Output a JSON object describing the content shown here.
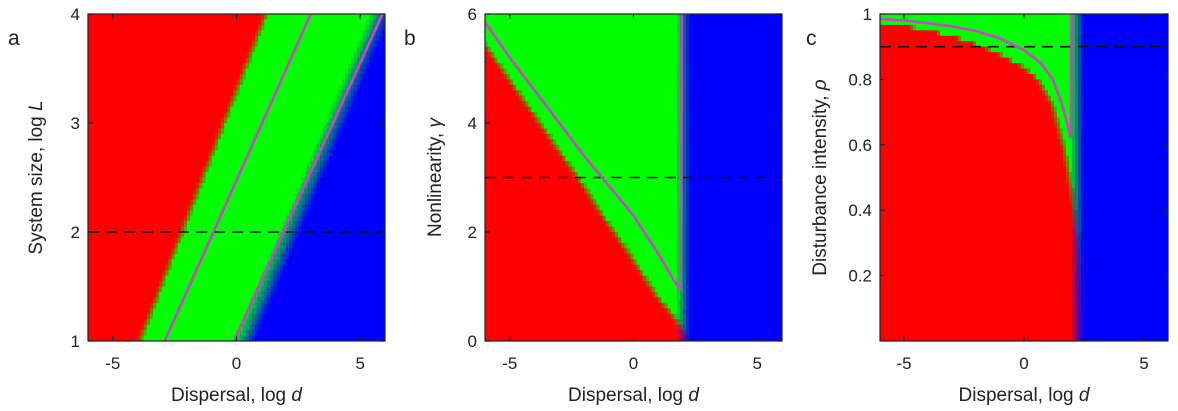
{
  "chart_data": [
    {
      "type": "heatmap",
      "panel_letter": "a",
      "xlabel": {
        "text": "Dispersal, log ",
        "var": "d"
      },
      "ylabel": {
        "text": "System size, log ",
        "var": "L"
      },
      "xlim": [
        -6,
        6
      ],
      "ylim": [
        1,
        4
      ],
      "xticks": [
        -5,
        0,
        5
      ],
      "yticks": [
        1,
        2,
        3,
        4
      ],
      "region_colors": {
        "red": "#ff0000",
        "green": "#00ff00",
        "blue": "#0000ff"
      },
      "boundaries": {
        "red_green": [
          [
            -3.8,
            1.0
          ],
          [
            1.3,
            4.0
          ]
        ],
        "green_blue": [
          [
            0.3,
            1.0
          ],
          [
            5.8,
            4.0
          ]
        ],
        "green_blue_blur": 0.9
      },
      "curves": [
        {
          "color": "#cc44cc",
          "points": [
            [
              -2.9,
              1.0
            ],
            [
              3.0,
              4.0
            ]
          ]
        },
        {
          "color": "#cc44cc",
          "points": [
            [
              -0.1,
              1.0
            ],
            [
              5.9,
              4.0
            ]
          ]
        }
      ],
      "dashed_level": 2
    },
    {
      "type": "heatmap",
      "panel_letter": "b",
      "xlabel": {
        "text": "Dispersal, log ",
        "var": "d"
      },
      "ylabel": {
        "text": "Nonlinearity, ",
        "var": "γ"
      },
      "xlim": [
        -6,
        6
      ],
      "ylim": [
        0,
        6
      ],
      "xticks": [
        -5,
        0,
        5
      ],
      "yticks": [
        0,
        2,
        4,
        6
      ],
      "region_colors": {
        "red": "#ff0000",
        "green": "#00ff00",
        "blue": "#0000ff"
      },
      "boundaries": {
        "red_green": [
          [
            -6,
            5.5
          ],
          [
            -5,
            4.85
          ],
          [
            -4,
            4.2
          ],
          [
            -3,
            3.55
          ],
          [
            -2,
            2.9
          ],
          [
            -1,
            2.2
          ],
          [
            0,
            1.55
          ],
          [
            1,
            0.85
          ],
          [
            1.8,
            0.4
          ],
          [
            2.4,
            0.0
          ]
        ],
        "green_blue": [
          [
            2.0,
            0
          ],
          [
            2.0,
            6
          ]
        ],
        "green_blue_blur": 0.55
      },
      "curves": [
        {
          "color": "#cc44cc",
          "points": [
            [
              -6,
              5.85
            ],
            [
              -5,
              5.2
            ],
            [
              -4,
              4.6
            ],
            [
              -3,
              4.0
            ],
            [
              -2,
              3.4
            ],
            [
              -1,
              2.85
            ],
            [
              0,
              2.3
            ],
            [
              1,
              1.6
            ],
            [
              1.65,
              1.1
            ],
            [
              1.9,
              0.95
            ],
            [
              1.95,
              6.0
            ]
          ]
        }
      ],
      "dashed_level": 3
    },
    {
      "type": "heatmap",
      "panel_letter": "c",
      "xlabel": {
        "text": "Dispersal, log ",
        "var": "d"
      },
      "ylabel": {
        "text": "Disturbance intensity, ",
        "var": "ρ"
      },
      "xlim": [
        -6,
        6
      ],
      "ylim": [
        0,
        1
      ],
      "xticks": [
        -5,
        0,
        5
      ],
      "yticks": [
        0.2,
        0.4,
        0.6,
        0.8,
        1
      ],
      "ytick_labels": [
        "0.2",
        "0.4",
        "0.6",
        "0.8",
        "1"
      ],
      "region_colors": {
        "red": "#ff0000",
        "green": "#00ff00",
        "blue": "#0000ff"
      },
      "boundaries": {
        "red_green": [
          [
            -6,
            0.975
          ],
          [
            -5,
            0.965
          ],
          [
            -4,
            0.95
          ],
          [
            -3,
            0.935
          ],
          [
            -2,
            0.91
          ],
          [
            -1,
            0.88
          ],
          [
            0,
            0.84
          ],
          [
            0.7,
            0.8
          ],
          [
            1.3,
            0.72
          ],
          [
            1.8,
            0.58
          ],
          [
            2.1,
            0.45
          ],
          [
            2.4,
            0.28
          ],
          [
            2.6,
            0.0
          ]
        ],
        "green_blue": [
          [
            2.2,
            0
          ],
          [
            2.2,
            1
          ]
        ],
        "green_blue_blur": 0.55
      },
      "curves": [
        {
          "color": "#cc44cc",
          "points": [
            [
              -6,
              0.985
            ],
            [
              -5,
              0.98
            ],
            [
              -4,
              0.972
            ],
            [
              -3,
              0.962
            ],
            [
              -2,
              0.948
            ],
            [
              -1,
              0.925
            ],
            [
              0,
              0.89
            ],
            [
              0.7,
              0.85
            ],
            [
              1.2,
              0.8
            ],
            [
              1.6,
              0.72
            ],
            [
              1.85,
              0.65
            ],
            [
              1.95,
              0.62
            ],
            [
              1.98,
              1.0
            ]
          ]
        }
      ],
      "dashed_level": 0.9
    }
  ]
}
